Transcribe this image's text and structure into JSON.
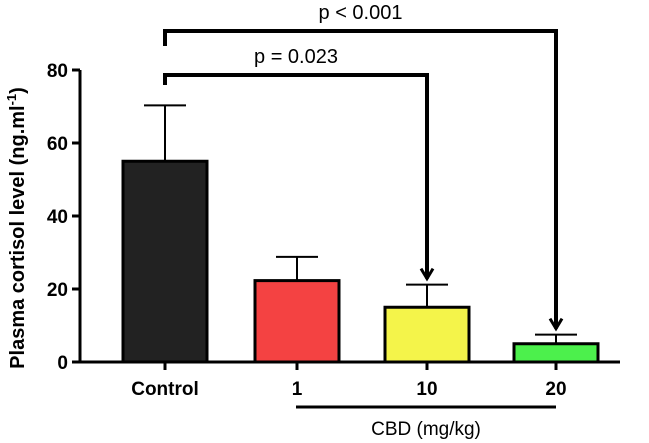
{
  "chart_data": {
    "type": "bar",
    "title": "",
    "xlabel": "",
    "ylabel": "Plasma cortisol level (ng.ml",
    "ylabel_superscript": "-1",
    "ylabel_close": ")",
    "ylim": [
      0,
      80
    ],
    "yticks": [
      0,
      20,
      40,
      60,
      80
    ],
    "grid": false,
    "categories": [
      "Control",
      "1",
      "10",
      "20"
    ],
    "values": [
      55,
      22.3,
      15,
      5
    ],
    "errors": [
      15.3,
      6.5,
      6.2,
      2.5
    ],
    "colors": [
      "#222222",
      "#f44242",
      "#f4f44a",
      "#4cf04c"
    ],
    "group_label": "CBD (mg/kg)",
    "annotations": [
      {
        "text": "p = 0.023",
        "from": "Control",
        "to": "10"
      },
      {
        "text": "p < 0.001",
        "from": "Control",
        "to": "20"
      }
    ]
  }
}
